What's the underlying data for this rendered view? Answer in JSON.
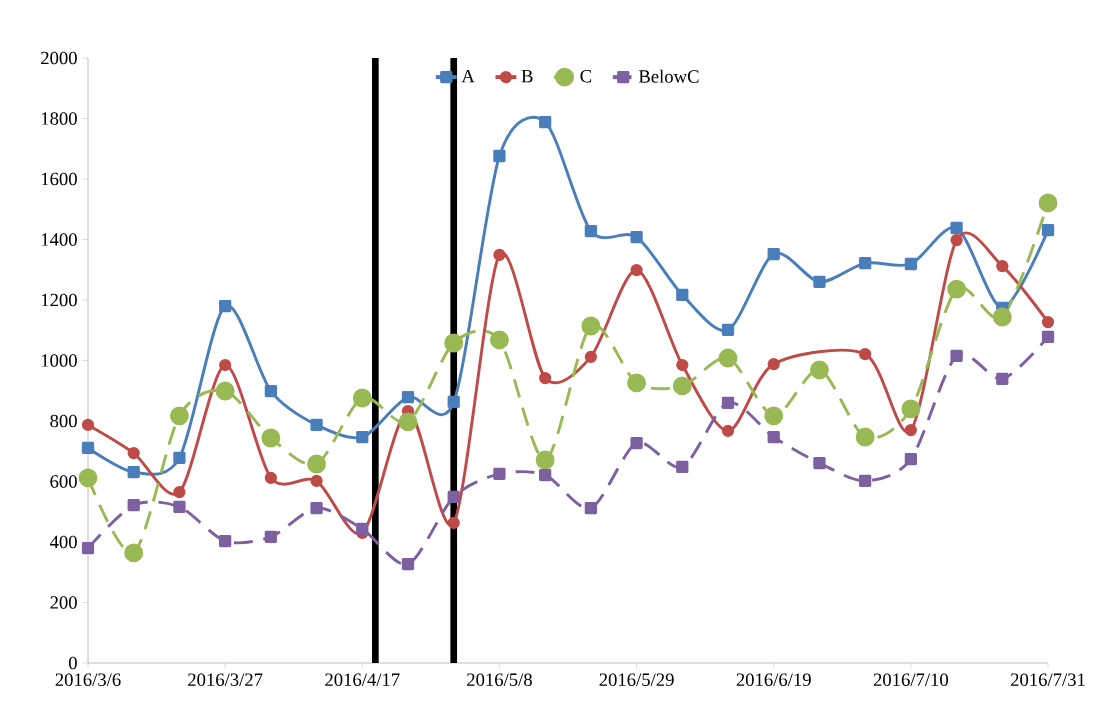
{
  "chart_data": {
    "type": "line",
    "x": [
      "2016-03-06",
      "2016-03-13",
      "2016-03-20",
      "2016-03-27",
      "2016-04-03",
      "2016-04-10",
      "2016-04-17",
      "2016-04-24",
      "2016-05-01",
      "2016-05-08",
      "2016-05-15",
      "2016-05-22",
      "2016-05-29",
      "2016-06-05",
      "2016-06-12",
      "2016-06-19",
      "2016-06-26",
      "2016-07-03",
      "2016-07-10",
      "2016-07-17",
      "2016-07-24",
      "2016-07-31"
    ],
    "series": [
      {
        "name": "A",
        "color": "#4a7ebb",
        "marker": "square",
        "line_style": "solid",
        "values": [
          711,
          631,
          678,
          1180,
          899,
          787,
          747,
          879,
          863,
          1676,
          1788,
          1428,
          1408,
          1217,
          1101,
          1352,
          1260,
          1322,
          1319,
          1438,
          1174,
          1431
        ]
      },
      {
        "name": "B",
        "color": "#be4b48",
        "marker": "circle",
        "line_style": "solid",
        "values": [
          787,
          694,
          565,
          985,
          612,
          602,
          430,
          833,
          463,
          1349,
          942,
          1012,
          1299,
          985,
          767,
          988,
          null,
          1021,
          770,
          1398,
          1312,
          1127
        ]
      },
      {
        "name": "C",
        "color": "#98b954",
        "marker": "circle",
        "line_style": "dashed",
        "values": [
          612,
          364,
          817,
          899,
          744,
          658,
          876,
          797,
          1058,
          1068,
          671,
          1114,
          926,
          916,
          1008,
          817,
          969,
          747,
          840,
          1236,
          1144,
          1521
        ]
      },
      {
        "name": "BelowC",
        "color": "#7d60a0",
        "marker": "square",
        "line_style": "dashed",
        "values": [
          380,
          522,
          516,
          403,
          417,
          512,
          443,
          327,
          549,
          625,
          621,
          512,
          727,
          648,
          860,
          747,
          661,
          602,
          674,
          1015,
          939,
          1078
        ]
      }
    ],
    "xlim": [
      "2016-03-06",
      "2016-07-31"
    ],
    "xticks": [
      {
        "value": "2016-03-06",
        "label": "2016/3/6"
      },
      {
        "value": "2016-03-27",
        "label": "2016/3/27"
      },
      {
        "value": "2016-04-17",
        "label": "2016/4/17"
      },
      {
        "value": "2016-05-08",
        "label": "2016/5/8"
      },
      {
        "value": "2016-05-29",
        "label": "2016/5/29"
      },
      {
        "value": "2016-06-19",
        "label": "2016/6/19"
      },
      {
        "value": "2016-07-10",
        "label": "2016/7/10"
      },
      {
        "value": "2016-07-31",
        "label": "2016/7/31"
      }
    ],
    "ylim": [
      0,
      2000
    ],
    "yticks": [
      0,
      200,
      400,
      600,
      800,
      1000,
      1200,
      1400,
      1600,
      1800,
      2000
    ],
    "ref_lines": [
      {
        "axis": "x",
        "value": "2016-04-19",
        "color": "#000000"
      },
      {
        "axis": "x",
        "value": "2016-05-01",
        "color": "#000000"
      }
    ],
    "legend": "top",
    "grid": false
  }
}
